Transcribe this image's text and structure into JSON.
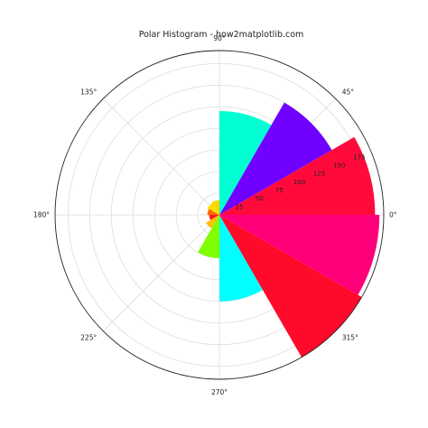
{
  "chart_data": {
    "type": "bar",
    "projection": "polar",
    "title": "Polar Histogram - how2matplotlib.com",
    "angle_ticks": [
      {
        "deg": 0,
        "label": "0°"
      },
      {
        "deg": 45,
        "label": "45°"
      },
      {
        "deg": 90,
        "label": "90°"
      },
      {
        "deg": 135,
        "label": "135°"
      },
      {
        "deg": 180,
        "label": "180°"
      },
      {
        "deg": 225,
        "label": "225°"
      },
      {
        "deg": 270,
        "label": "270°"
      },
      {
        "deg": 315,
        "label": "315°"
      }
    ],
    "radial_ticks": [
      25,
      50,
      75,
      100,
      125,
      150,
      175
    ],
    "radial_tick_labels": [
      "25",
      "50",
      "75",
      "100",
      "125",
      "150",
      "175"
    ],
    "rlim": [
      0,
      190
    ],
    "grid": true,
    "bin_width_deg": 30,
    "bars": [
      {
        "start_deg": 0,
        "value": 180,
        "color": "#ff0a3a"
      },
      {
        "start_deg": 30,
        "value": 150,
        "color": "#7000ff"
      },
      {
        "start_deg": 60,
        "value": 120,
        "color": "#00ffd2"
      },
      {
        "start_deg": 90,
        "value": 17,
        "color": "#ffd400"
      },
      {
        "start_deg": 120,
        "value": 16,
        "color": "#ffe000"
      },
      {
        "start_deg": 150,
        "value": 14,
        "color": "#ff6a00"
      },
      {
        "start_deg": 180,
        "value": 12,
        "color": "#ff1a1a"
      },
      {
        "start_deg": 210,
        "value": 18,
        "color": "#ffc000"
      },
      {
        "start_deg": 240,
        "value": 50,
        "color": "#7fff00"
      },
      {
        "start_deg": 270,
        "value": 100,
        "color": "#00ffff"
      },
      {
        "start_deg": 300,
        "value": 190,
        "color": "#ff0a2a"
      },
      {
        "start_deg": 330,
        "value": 185,
        "color": "#ff007a"
      }
    ]
  }
}
